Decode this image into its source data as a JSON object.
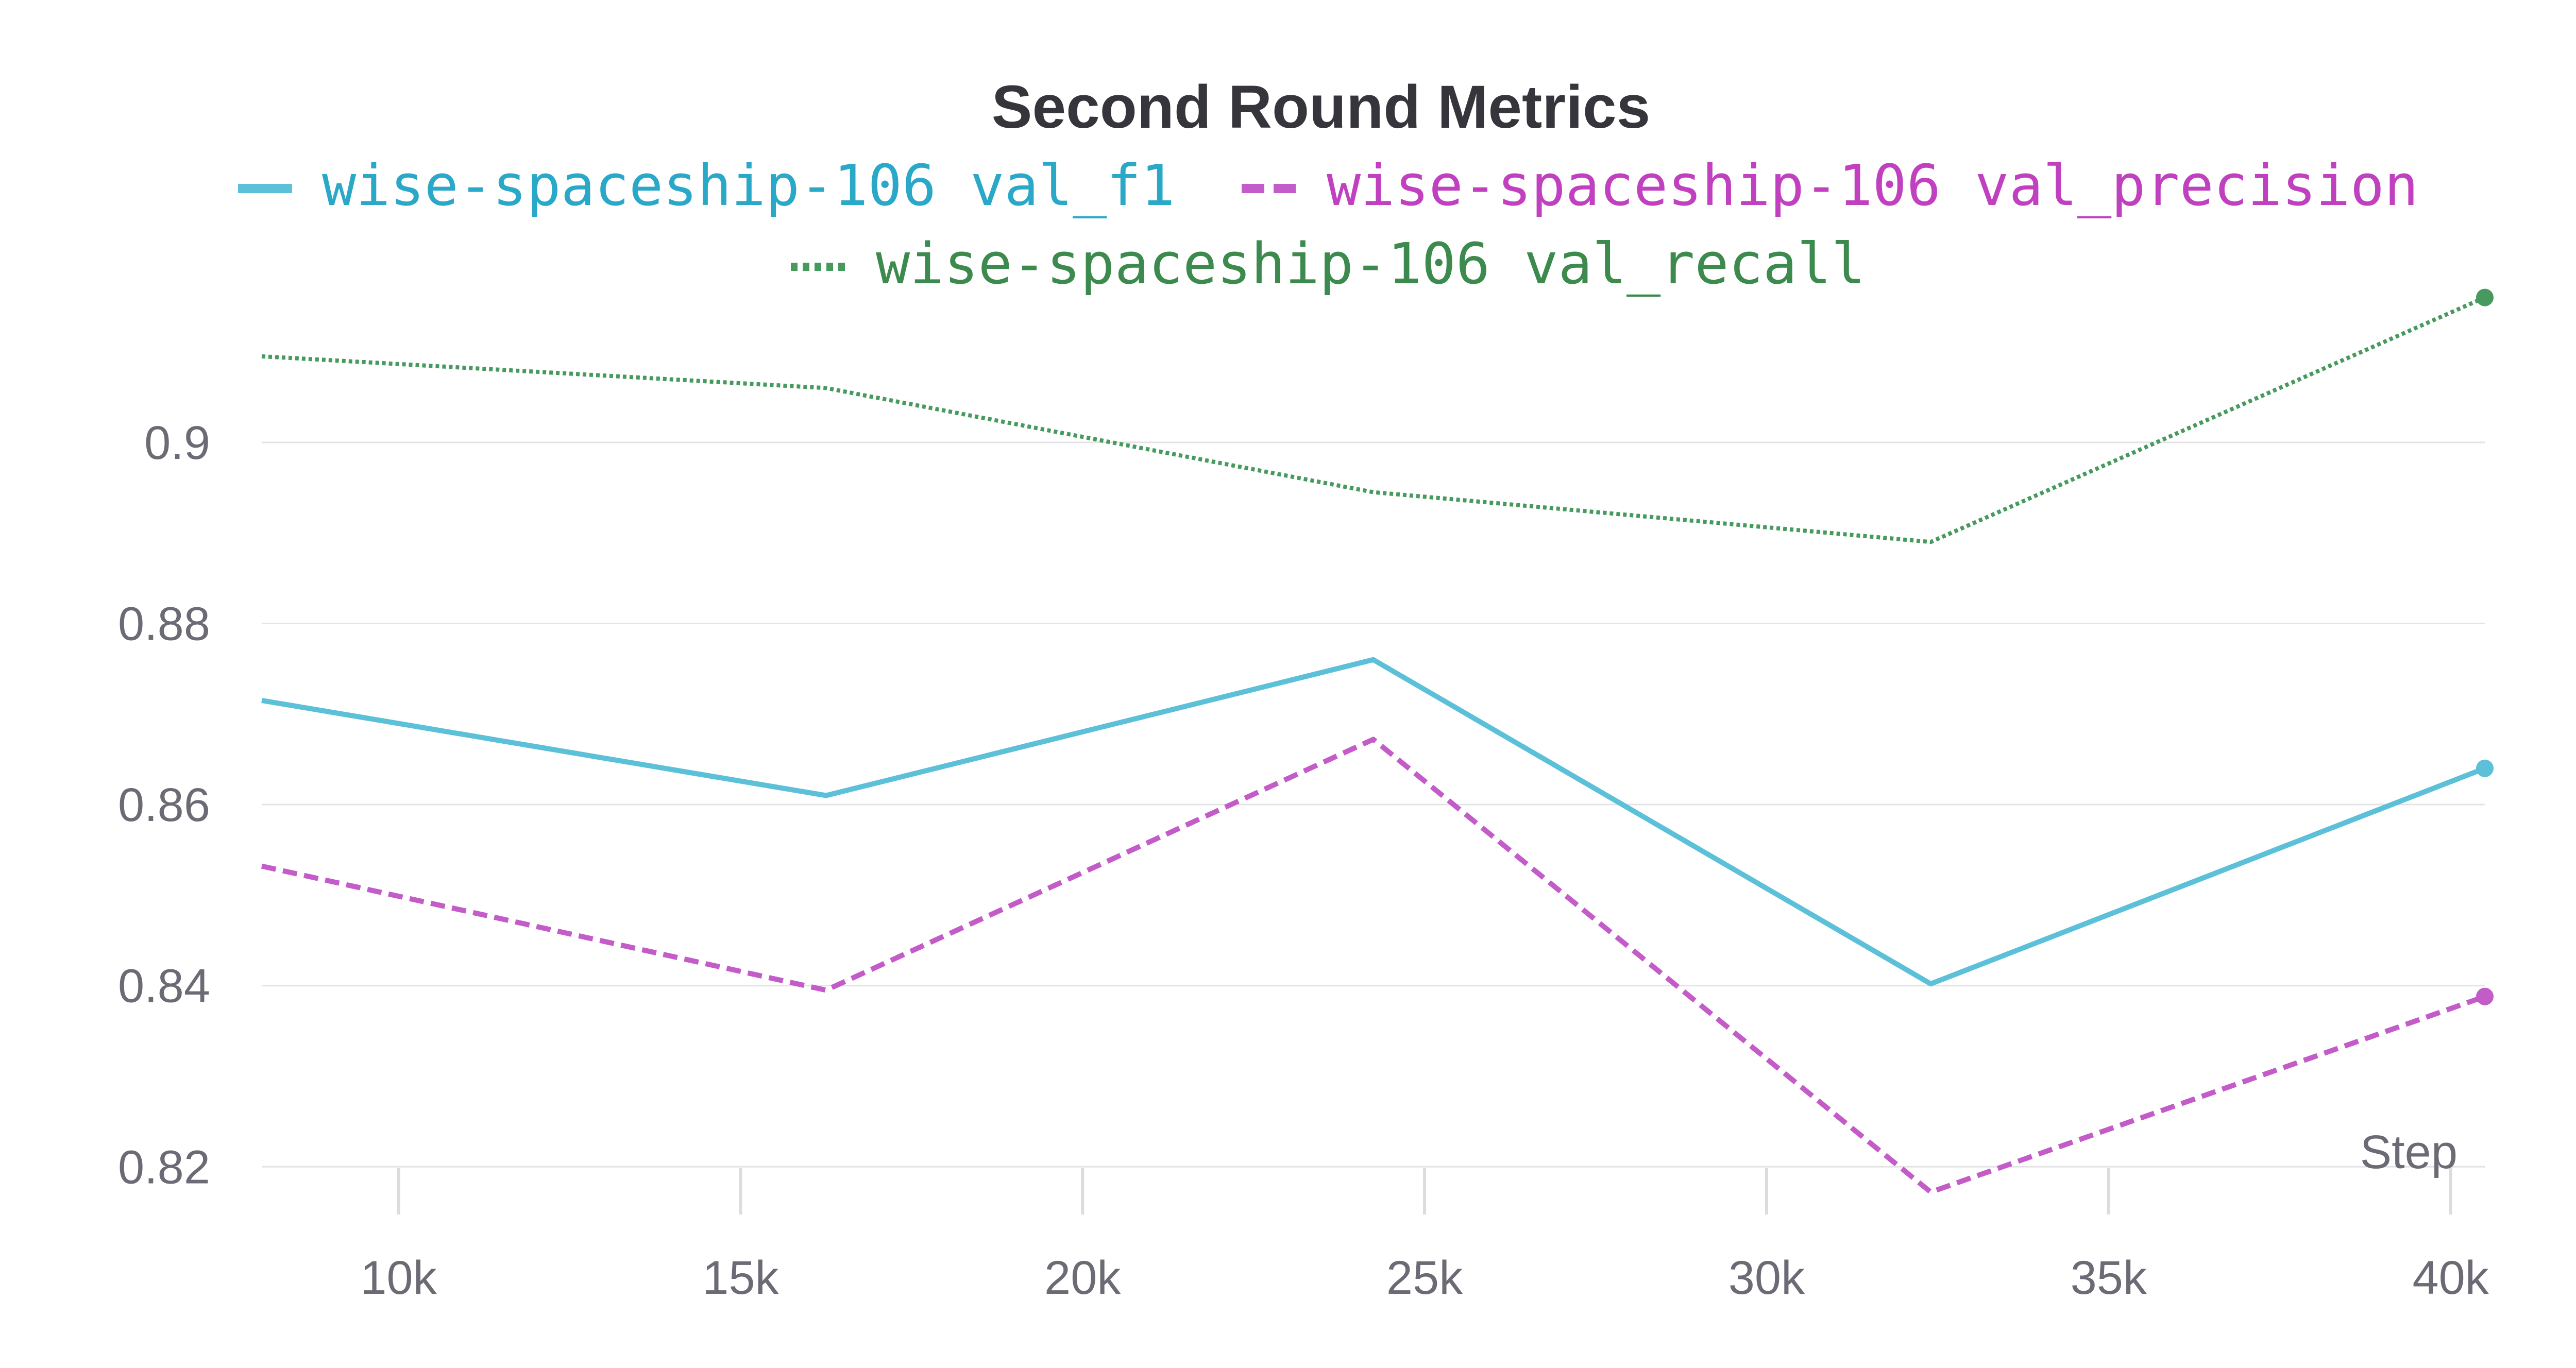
{
  "chart_data": {
    "type": "line",
    "title": "Second Round Metrics",
    "xlabel": "Step",
    "ylabel": "",
    "x_ticks": [
      "10k",
      "15k",
      "20k",
      "25k",
      "30k",
      "35k",
      "40k"
    ],
    "x_tick_values": [
      10000,
      15000,
      20000,
      25000,
      30000,
      35000,
      40000
    ],
    "y_ticks": [
      "0.82",
      "0.84",
      "0.86",
      "0.88",
      "0.9"
    ],
    "y_tick_values": [
      0.82,
      0.84,
      0.86,
      0.88,
      0.9
    ],
    "xlim": [
      8000,
      40500
    ],
    "ylim": [
      0.817,
      0.917
    ],
    "grid": "horizontal",
    "legend_position": "top",
    "x": [
      8000,
      16250,
      24250,
      32400,
      40500
    ],
    "series": [
      {
        "name": "wise-spaceship-106 val_f1",
        "color": "#5bc0d8",
        "legend_color": "#2aa8c8",
        "dash": "solid",
        "values": [
          0.8715,
          0.861,
          0.876,
          0.8402,
          0.864
        ]
      },
      {
        "name": "wise-spaceship-106 val_precision",
        "color": "#c35bc8",
        "legend_color": "#c040c0",
        "dash": "dashed",
        "values": [
          0.8532,
          0.8395,
          0.8672,
          0.8172,
          0.8388
        ]
      },
      {
        "name": "wise-spaceship-106 val_recall",
        "color": "#479a5d",
        "legend_color": "#3c8a4d",
        "dash": "dotted",
        "values": [
          0.9095,
          0.906,
          0.8945,
          0.889,
          0.916
        ]
      }
    ]
  }
}
